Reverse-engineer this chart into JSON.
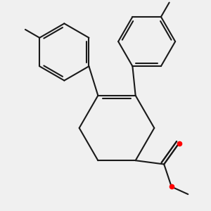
{
  "bg_color": "#f0f0f0",
  "bond_color": "#1a1a1a",
  "oxygen_color": "#ff0000",
  "line_width": 1.5,
  "fig_size": [
    3.0,
    3.0
  ],
  "dpi": 100
}
